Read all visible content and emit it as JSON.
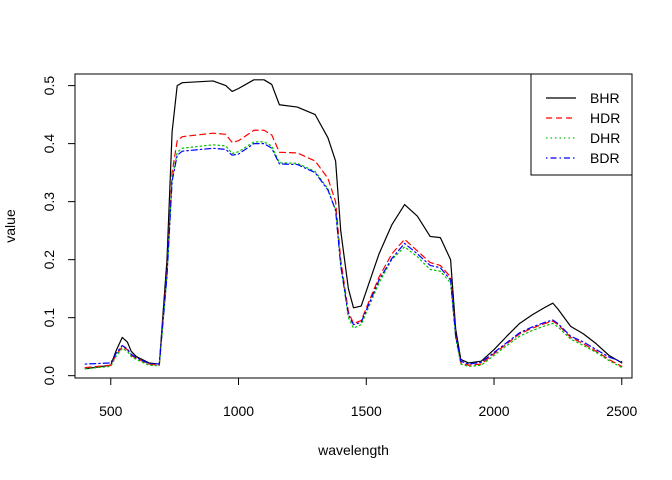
{
  "chart_data": {
    "type": "line",
    "title": "",
    "xlabel": "wavelength",
    "ylabel": "value",
    "xlim": [
      360,
      2540
    ],
    "ylim": [
      -0.004,
      0.52
    ],
    "x_ticks": [
      500,
      1000,
      1500,
      2000,
      2500
    ],
    "y_ticks": [
      0.0,
      0.1,
      0.2,
      0.3,
      0.4,
      0.5
    ],
    "x_tick_labels": [
      "500",
      "1000",
      "1500",
      "2000",
      "2500"
    ],
    "y_tick_labels": [
      "0.0",
      "0.1",
      "0.2",
      "0.3",
      "0.4",
      "0.5"
    ],
    "grid": false,
    "legend_position": "top-right",
    "x": [
      400,
      500,
      520,
      545,
      565,
      580,
      600,
      650,
      690,
      720,
      740,
      760,
      780,
      900,
      950,
      975,
      1000,
      1060,
      1100,
      1130,
      1160,
      1230,
      1300,
      1350,
      1380,
      1400,
      1430,
      1450,
      1480,
      1550,
      1600,
      1650,
      1700,
      1750,
      1790,
      1830,
      1850,
      1870,
      1900,
      1950,
      2000,
      2050,
      2100,
      2150,
      2200,
      2230,
      2250,
      2300,
      2350,
      2400,
      2450,
      2500
    ],
    "series": [
      {
        "name": "BHR",
        "color": "#000000",
        "dash": "solid",
        "values": [
          0.012,
          0.018,
          0.042,
          0.066,
          0.058,
          0.042,
          0.033,
          0.022,
          0.02,
          0.2,
          0.42,
          0.5,
          0.505,
          0.508,
          0.5,
          0.49,
          0.495,
          0.51,
          0.51,
          0.502,
          0.467,
          0.463,
          0.45,
          0.41,
          0.37,
          0.25,
          0.15,
          0.117,
          0.12,
          0.21,
          0.26,
          0.295,
          0.275,
          0.24,
          0.238,
          0.2,
          0.08,
          0.028,
          0.022,
          0.025,
          0.045,
          0.068,
          0.09,
          0.105,
          0.118,
          0.125,
          0.115,
          0.085,
          0.072,
          0.055,
          0.035,
          0.022
        ]
      },
      {
        "name": "HDR",
        "color": "#ff0000",
        "dash": "dashed",
        "values": [
          0.014,
          0.018,
          0.035,
          0.05,
          0.045,
          0.035,
          0.03,
          0.02,
          0.018,
          0.18,
          0.35,
          0.405,
          0.412,
          0.418,
          0.416,
          0.402,
          0.405,
          0.423,
          0.423,
          0.415,
          0.385,
          0.384,
          0.37,
          0.34,
          0.3,
          0.2,
          0.11,
          0.09,
          0.095,
          0.17,
          0.21,
          0.235,
          0.215,
          0.195,
          0.19,
          0.17,
          0.07,
          0.022,
          0.018,
          0.02,
          0.038,
          0.055,
          0.072,
          0.082,
          0.09,
          0.094,
          0.088,
          0.066,
          0.055,
          0.042,
          0.028,
          0.016
        ]
      },
      {
        "name": "DHR",
        "color": "#00c000",
        "dash": "dotted",
        "values": [
          0.012,
          0.016,
          0.033,
          0.047,
          0.042,
          0.033,
          0.028,
          0.018,
          0.017,
          0.17,
          0.34,
          0.385,
          0.392,
          0.398,
          0.396,
          0.383,
          0.386,
          0.403,
          0.403,
          0.396,
          0.367,
          0.366,
          0.352,
          0.322,
          0.285,
          0.19,
          0.1,
          0.082,
          0.088,
          0.16,
          0.2,
          0.222,
          0.205,
          0.183,
          0.18,
          0.16,
          0.065,
          0.02,
          0.016,
          0.018,
          0.035,
          0.052,
          0.068,
          0.078,
          0.086,
          0.09,
          0.084,
          0.063,
          0.052,
          0.04,
          0.026,
          0.014
        ]
      },
      {
        "name": "BDR",
        "color": "#0000ff",
        "dash": "dotdash",
        "values": [
          0.02,
          0.022,
          0.038,
          0.052,
          0.046,
          0.037,
          0.031,
          0.021,
          0.02,
          0.172,
          0.335,
          0.38,
          0.387,
          0.392,
          0.39,
          0.38,
          0.382,
          0.4,
          0.4,
          0.392,
          0.365,
          0.364,
          0.35,
          0.32,
          0.285,
          0.19,
          0.105,
          0.088,
          0.092,
          0.165,
          0.202,
          0.228,
          0.21,
          0.19,
          0.186,
          0.165,
          0.068,
          0.025,
          0.02,
          0.023,
          0.04,
          0.057,
          0.074,
          0.084,
          0.092,
          0.096,
          0.09,
          0.068,
          0.058,
          0.045,
          0.032,
          0.024
        ]
      }
    ]
  }
}
